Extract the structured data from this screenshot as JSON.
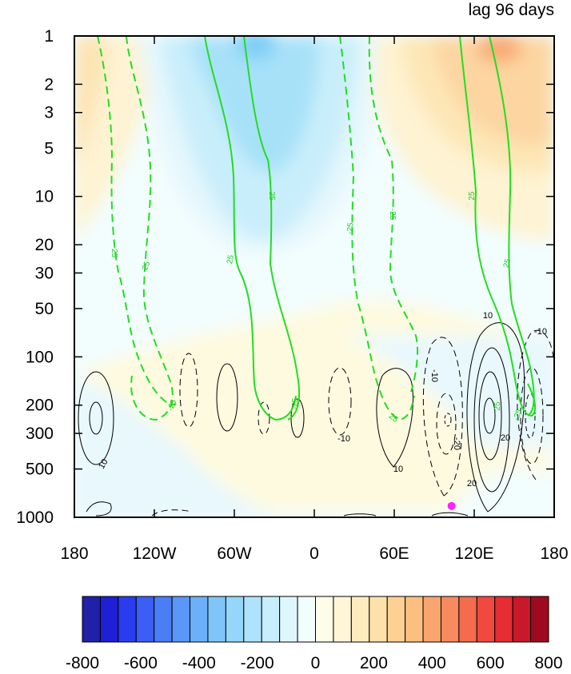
{
  "chart_data": {
    "type": "heatmap",
    "title": "lag 96 days",
    "xlabel": "",
    "ylabel": "",
    "x_range": [
      -180,
      180
    ],
    "x_ticks": [
      {
        "value": -180,
        "label": "180"
      },
      {
        "value": -120,
        "label": "120W"
      },
      {
        "value": -60,
        "label": "60W"
      },
      {
        "value": 0,
        "label": "0"
      },
      {
        "value": 60,
        "label": "60E"
      },
      {
        "value": 120,
        "label": "120E"
      },
      {
        "value": 180,
        "label": "180"
      }
    ],
    "y_scale": "log",
    "y_reversed": true,
    "y_range": [
      1,
      1000
    ],
    "y_ticks": [
      {
        "value": 1,
        "label": "1"
      },
      {
        "value": 2,
        "label": "2"
      },
      {
        "value": 3,
        "label": "3"
      },
      {
        "value": 5,
        "label": "5"
      },
      {
        "value": 10,
        "label": "10"
      },
      {
        "value": 20,
        "label": "20"
      },
      {
        "value": 30,
        "label": "30"
      },
      {
        "value": 50,
        "label": "50"
      },
      {
        "value": 100,
        "label": "100"
      },
      {
        "value": 200,
        "label": "200"
      },
      {
        "value": 300,
        "label": "300"
      },
      {
        "value": 500,
        "label": "500"
      },
      {
        "value": 1000,
        "label": "1000"
      }
    ],
    "colorbar": {
      "levels": [
        -800,
        800
      ],
      "step": 50,
      "labels": [
        "-800",
        "-600",
        "-400",
        "-200",
        "0",
        "200",
        "400",
        "600",
        "800"
      ],
      "label_values": [
        -800,
        -600,
        -400,
        -200,
        0,
        200,
        400,
        600,
        800
      ],
      "colors": [
        "#2020a8",
        "#1f1fd6",
        "#2a3cf0",
        "#3b5ef5",
        "#4a7ef7",
        "#5b97f8",
        "#6bb0f9",
        "#7fc5fa",
        "#96d6fb",
        "#aee3fc",
        "#c6eefd",
        "#def7fe",
        "#f2fdfe",
        "#fefde9",
        "#fef6d6",
        "#feecbf",
        "#fde1a8",
        "#fcd193",
        "#fbbf80",
        "#f9a56e",
        "#f78a5e",
        "#f46b4e",
        "#f04a40",
        "#e62d34",
        "#c8182a",
        "#9e0b21"
      ]
    },
    "shaded_field_regions": [
      {
        "name": "negative-upper-center",
        "value": -300,
        "x_range": [
          -60,
          -10
        ],
        "p_range": [
          1,
          8
        ]
      },
      {
        "name": "negative-upper-core",
        "value": -350,
        "x_range": [
          -40,
          -25
        ],
        "p_range": [
          1,
          1.6
        ]
      },
      {
        "name": "positive-upper-east",
        "value": 250,
        "x_range": [
          100,
          180
        ],
        "p_range": [
          1,
          6
        ]
      },
      {
        "name": "positive-upper-east-core",
        "value": 350,
        "x_range": [
          110,
          130
        ],
        "p_range": [
          1,
          1.6
        ]
      },
      {
        "name": "positive-upper-west",
        "value": 150,
        "x_range": [
          -180,
          -150
        ],
        "p_range": [
          1,
          10
        ]
      },
      {
        "name": "positive-lower-band",
        "value": 50,
        "x_range": [
          -180,
          120
        ],
        "p_range": [
          100,
          1000
        ]
      }
    ],
    "black_contour_labels": [
      "10",
      "10",
      "-10",
      "-10",
      "10",
      "-20",
      "20",
      "20",
      "-10"
    ],
    "green_contour_labels": [
      "-25",
      "-25",
      "25",
      "25",
      "-25",
      "-25",
      "25",
      "25",
      "-25",
      "-25",
      "25",
      "25",
      "-25"
    ],
    "marker": {
      "color": "#ff22ff",
      "x": 103,
      "p": 850
    }
  }
}
